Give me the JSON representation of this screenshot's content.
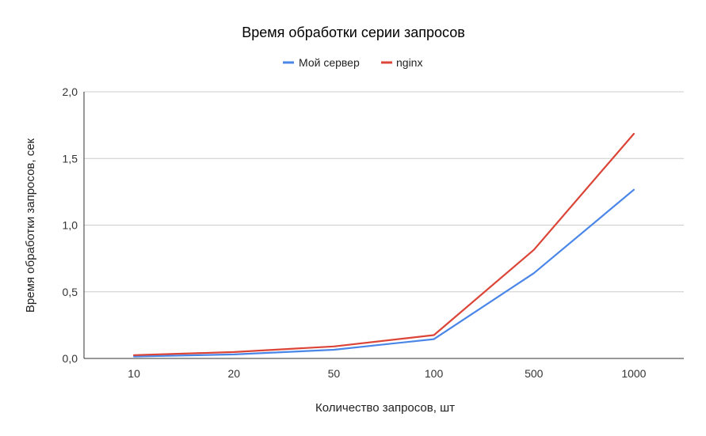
{
  "chart_data": {
    "type": "line",
    "title": "Время обработки серии запросов",
    "xlabel": "Количество запросов, шт",
    "ylabel": "Время обработки запросов, сек",
    "categories": [
      "10",
      "20",
      "50",
      "100",
      "500",
      "1000"
    ],
    "ylim": [
      0,
      2.0
    ],
    "yticks": [
      "0,0",
      "0,5",
      "1,0",
      "1,5",
      "2,0"
    ],
    "ytick_values": [
      0,
      0.5,
      1.0,
      1.5,
      2.0
    ],
    "grid": true,
    "legend_position": "top",
    "series": [
      {
        "name": "Мой сервер",
        "color": "#4a86e8",
        "values": [
          0.015,
          0.03,
          0.065,
          0.145,
          0.64,
          1.265
        ]
      },
      {
        "name": "nginx",
        "color": "#db4437",
        "values": [
          0.025,
          0.048,
          0.09,
          0.175,
          0.815,
          1.685
        ]
      }
    ]
  }
}
